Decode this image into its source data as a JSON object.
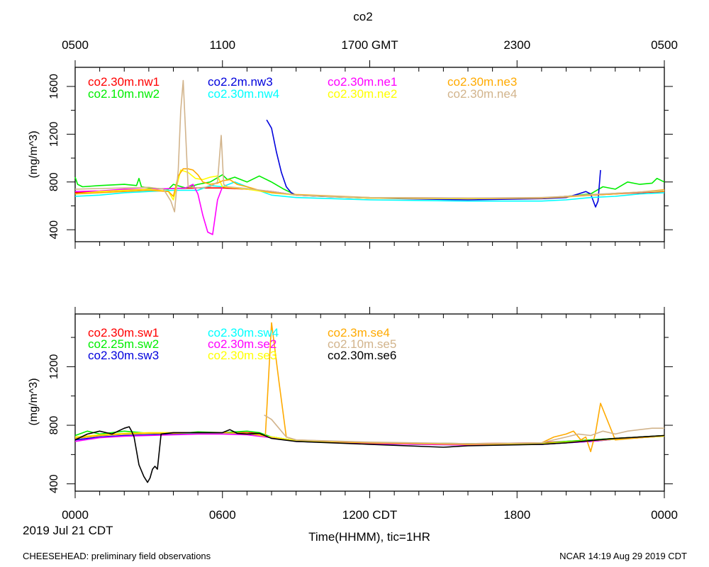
{
  "chart_data": {
    "type": "line",
    "title": "co2",
    "top_axis": {
      "ticks": [
        "0500",
        "1100",
        "1700 GMT",
        "2300",
        "0500"
      ]
    },
    "bottom_axis": {
      "ticks": [
        "0000",
        "0600",
        "1200 CDT",
        "1800",
        "0000"
      ],
      "xlabel": "Time(HHMM), tic=1HR",
      "date_label": "2019 Jul 21 CDT"
    },
    "xlim": [
      0,
      24
    ],
    "footer_left": "CHEESEHEAD: preliminary field observations",
    "footer_right": "NCAR 14:19 Aug 29 2019 CDT",
    "panels": [
      {
        "ylabel": "(mg/m^3)",
        "ylim": [
          300,
          1760
        ],
        "yticks": [
          400,
          800,
          1200,
          1600
        ],
        "series": [
          {
            "name": "co2.30m.nw1",
            "color": "#ff0000",
            "x": [
              0,
              1,
              2,
              3,
              4,
              5,
              6,
              7,
              8,
              9,
              12,
              16,
              19,
              20,
              21,
              22,
              23,
              24
            ],
            "y": [
              710,
              720,
              730,
              740,
              745,
              750,
              750,
              740,
              720,
              690,
              665,
              660,
              665,
              680,
              690,
              700,
              710,
              720
            ]
          },
          {
            "name": "co2.10m.nw2",
            "color": "#00ee00",
            "x": [
              0,
              0.1,
              0.3,
              1,
              2,
              2.5,
              2.6,
              2.7,
              3,
              3.8,
              4,
              4.5,
              5,
              5.5,
              6,
              6.2,
              6.5,
              7,
              7.5,
              8,
              8.5,
              9,
              10,
              12,
              16,
              19,
              20,
              21,
              21.5,
              22,
              22.5,
              23,
              23.5,
              23.7,
              24
            ],
            "y": [
              840,
              780,
              760,
              770,
              780,
              770,
              830,
              760,
              750,
              740,
              780,
              750,
              780,
              800,
              860,
              820,
              840,
              800,
              850,
              800,
              740,
              690,
              680,
              665,
              660,
              665,
              680,
              700,
              760,
              740,
              800,
              780,
              790,
              830,
              800
            ]
          },
          {
            "name": "co2.2m.nw3",
            "color": "#0000dd",
            "x": [
              7.8,
              8.0,
              8.2,
              8.4,
              8.6,
              8.8,
              9.0,
              10,
              12,
              16,
              19,
              20,
              20.5,
              20.8,
              21.0,
              21.2,
              21.3,
              21.4
            ],
            "y": [
              1320,
              1250,
              1050,
              880,
              760,
              710,
              690,
              680,
              665,
              650,
              660,
              670,
              700,
              720,
              700,
              590,
              640,
              900
            ]
          },
          {
            "name": "co2.30m.nw4",
            "color": "#00ffff",
            "x": [
              0,
              1,
              2,
              3,
              4,
              5,
              5.5,
              6,
              6.5,
              7,
              7.3,
              7.6,
              8,
              9,
              12,
              16,
              19,
              20,
              21,
              22,
              23,
              24
            ],
            "y": [
              680,
              690,
              710,
              720,
              730,
              730,
              770,
              760,
              800,
              760,
              740,
              720,
              690,
              670,
              650,
              640,
              640,
              650,
              670,
              680,
              700,
              710
            ]
          },
          {
            "name": "co2.30m.ne1",
            "color": "#ff00ff",
            "x": [
              0,
              1,
              2,
              3,
              4,
              4.5,
              4.8,
              5.0,
              5.2,
              5.4,
              5.6,
              5.8,
              6.0,
              6.5,
              7,
              8,
              9,
              12,
              16,
              19,
              20,
              21,
              22,
              23,
              24
            ],
            "y": [
              720,
              725,
              740,
              740,
              745,
              750,
              780,
              700,
              520,
              380,
              360,
              650,
              760,
              750,
              740,
              720,
              690,
              665,
              660,
              665,
              680,
              690,
              705,
              715,
              725
            ]
          },
          {
            "name": "co2.30m.ne2",
            "color": "#ffff00",
            "x": [
              0,
              1,
              2,
              3,
              3.8,
              4.0,
              4.3,
              4.6,
              4.9,
              5.2,
              5.5,
              5.8,
              6.0,
              6.5,
              7,
              8,
              9,
              12,
              16,
              19,
              20,
              21,
              22,
              23,
              24
            ],
            "y": [
              700,
              720,
              730,
              740,
              720,
              650,
              900,
              880,
              830,
              820,
              840,
              850,
              760,
              750,
              740,
              710,
              690,
              665,
              660,
              665,
              680,
              690,
              705,
              715,
              725
            ]
          },
          {
            "name": "co2.30m.ne3",
            "color": "#ffaa00",
            "x": [
              0,
              1,
              2,
              3,
              3.8,
              4.0,
              4.2,
              4.4,
              4.6,
              4.8,
              5.0,
              5.2,
              5.5,
              5.8,
              6.0,
              6.3,
              6.6,
              7,
              7.5,
              8,
              9,
              12,
              16,
              19,
              20,
              21,
              22,
              23,
              24
            ],
            "y": [
              700,
              710,
              720,
              730,
              720,
              680,
              850,
              910,
              910,
              900,
              860,
              800,
              780,
              790,
              810,
              820,
              780,
              760,
              730,
              710,
              695,
              670,
              665,
              665,
              675,
              690,
              700,
              715,
              735
            ]
          },
          {
            "name": "co2.30m.ne4",
            "color": "#d2b48c",
            "x": [
              0,
              1,
              2,
              3,
              3.6,
              3.9,
              4.05,
              4.2,
              4.3,
              4.4,
              4.6,
              5.0,
              5.5,
              5.8,
              5.95,
              6.05,
              6.2,
              7,
              8,
              9,
              12,
              16,
              19,
              20,
              21,
              22,
              23,
              24
            ],
            "y": [
              740,
              745,
              750,
              755,
              740,
              640,
              550,
              900,
              1400,
              1650,
              760,
              750,
              760,
              800,
              1190,
              780,
              760,
              745,
              720,
              690,
              670,
              665,
              670,
              680,
              695,
              705,
              715,
              730
            ]
          }
        ]
      },
      {
        "ylabel": "(mg/m^3)",
        "ylim": [
          350,
          1560
        ],
        "yticks": [
          400,
          800,
          1200
        ],
        "series": [
          {
            "name": "co2.30m.sw1",
            "color": "#ff0000",
            "x": [
              0,
              1,
              2,
              3,
              4,
              5,
              6,
              7,
              7.5,
              8,
              9,
              12,
              16,
              19,
              20,
              21,
              22,
              23,
              24
            ],
            "y": [
              710,
              730,
              740,
              745,
              750,
              750,
              750,
              750,
              745,
              720,
              695,
              680,
              675,
              680,
              690,
              700,
              710,
              720,
              730
            ]
          },
          {
            "name": "co2.25m.sw2",
            "color": "#00ee00",
            "x": [
              0,
              0.5,
              1,
              1.5,
              2,
              3,
              4,
              5,
              6,
              7,
              7.5,
              8,
              9,
              12,
              16,
              19,
              20,
              21,
              22,
              23,
              24
            ],
            "y": [
              730,
              760,
              740,
              750,
              760,
              745,
              740,
              755,
              750,
              760,
              750,
              720,
              695,
              680,
              675,
              675,
              690,
              700,
              710,
              720,
              730
            ]
          },
          {
            "name": "co2.30m.sw3",
            "color": "#0000dd",
            "x": [
              0,
              1,
              2,
              3,
              4,
              5,
              6,
              7,
              8,
              9,
              12,
              16,
              19,
              20,
              21,
              22,
              23,
              24
            ],
            "y": [
              700,
              720,
              730,
              735,
              740,
              745,
              745,
              740,
              720,
              690,
              675,
              665,
              670,
              680,
              690,
              705,
              715,
              725
            ]
          },
          {
            "name": "co2.30m.sw4",
            "color": "#00ffff",
            "x": [
              0,
              1,
              2,
              3,
              4,
              5,
              6,
              7,
              8,
              9,
              12,
              16,
              19,
              20,
              21,
              22,
              23,
              24
            ],
            "y": [
              720,
              730,
              740,
              745,
              745,
              745,
              745,
              745,
              720,
              690,
              675,
              665,
              670,
              680,
              690,
              705,
              715,
              725
            ]
          },
          {
            "name": "co2.30m.se2",
            "color": "#ff00ff",
            "x": [
              0,
              1,
              2,
              3,
              4,
              5,
              6,
              7,
              8,
              9,
              12,
              16,
              19,
              20,
              21,
              22,
              23,
              24
            ],
            "y": [
              690,
              715,
              725,
              730,
              735,
              740,
              740,
              735,
              715,
              690,
              675,
              665,
              670,
              680,
              690,
              705,
              715,
              725
            ]
          },
          {
            "name": "co2.30m.se3",
            "color": "#ffff00",
            "x": [
              0,
              1,
              2,
              3,
              4,
              5,
              6,
              7,
              8,
              9,
              12,
              16,
              19,
              20,
              21,
              22,
              23,
              24
            ],
            "y": [
              720,
              735,
              745,
              750,
              750,
              750,
              750,
              745,
              720,
              695,
              680,
              670,
              675,
              685,
              695,
              705,
              715,
              725
            ]
          },
          {
            "name": "co2.3m.se4",
            "color": "#ffaa00",
            "x": [
              0,
              1,
              2,
              3,
              4,
              5,
              6,
              7,
              7.75,
              8.0,
              8.3,
              8.6,
              9,
              12,
              16,
              19,
              19.5,
              20,
              20.3,
              20.6,
              20.8,
              21.0,
              21.2,
              21.4,
              22,
              23,
              24
            ],
            "y": [
              710,
              730,
              740,
              745,
              745,
              750,
              750,
              745,
              730,
              1500,
              1100,
              720,
              700,
              680,
              670,
              680,
              720,
              740,
              760,
              700,
              720,
              620,
              750,
              950,
              700,
              715,
              730
            ]
          },
          {
            "name": "co2.10m.se5",
            "color": "#d2b48c",
            "x": [
              7.7,
              8.0,
              8.3,
              8.6,
              9,
              12,
              16,
              19,
              19.5,
              20,
              20.5,
              21,
              21.5,
              22,
              22.5,
              23,
              23.5,
              24
            ],
            "y": [
              870,
              840,
              780,
              720,
              700,
              685,
              675,
              680,
              700,
              720,
              740,
              730,
              760,
              740,
              760,
              770,
              780,
              780
            ]
          },
          {
            "name": "co2.30m.se6",
            "color": "#000000",
            "x": [
              0,
              0.5,
              1,
              1.5,
              2,
              2.2,
              2.3,
              2.4,
              2.6,
              2.8,
              2.95,
              3.05,
              3.15,
              3.25,
              3.35,
              3.5,
              4,
              5,
              6,
              6.3,
              6.6,
              7,
              7.5,
              8,
              9,
              12,
              15,
              16,
              19,
              20,
              21,
              22,
              23,
              24
            ],
            "y": [
              700,
              740,
              760,
              740,
              780,
              790,
              760,
              720,
              530,
              450,
              410,
              440,
              500,
              520,
              500,
              740,
              750,
              750,
              750,
              770,
              745,
              740,
              745,
              710,
              690,
              670,
              650,
              660,
              670,
              680,
              695,
              710,
              720,
              730
            ]
          }
        ]
      }
    ]
  }
}
